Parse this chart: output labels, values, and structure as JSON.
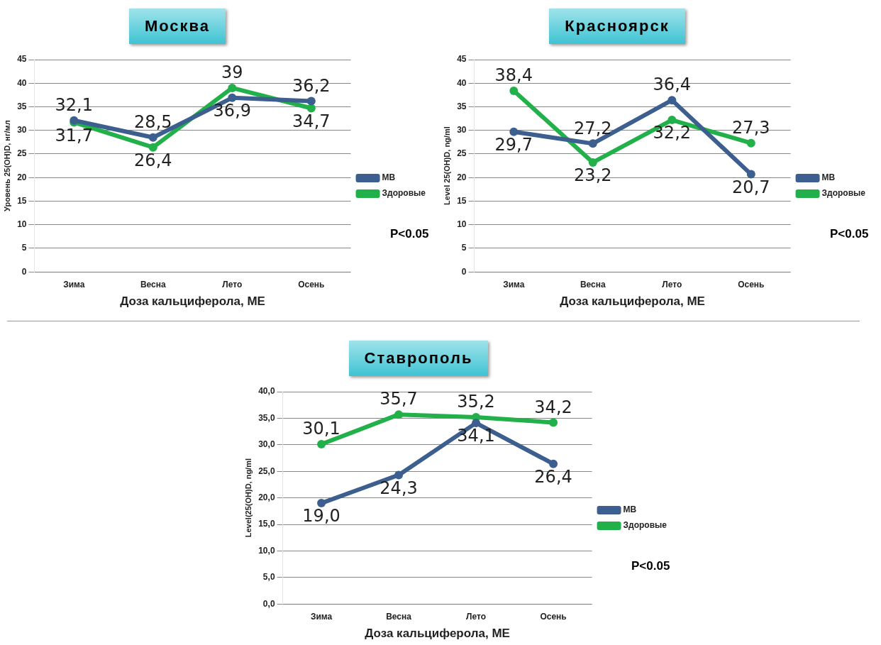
{
  "chart_data": [
    {
      "type": "line",
      "title": "Москва",
      "xlabel": "Доза кальциферола, МЕ",
      "ylabel": "Уровень 25(OH)D, нг/мл",
      "categories": [
        "Зима",
        "Весна",
        "Лето",
        "Осень"
      ],
      "series": [
        {
          "name": "МВ",
          "color": "#3d5f8f",
          "values": [
            32.1,
            28.5,
            36.9,
            36.2
          ],
          "value_labels": [
            "32,1",
            "28,5",
            "36,9",
            "36,2"
          ]
        },
        {
          "name": "Здоровые",
          "color": "#22b04a",
          "values": [
            31.7,
            26.4,
            39,
            34.7
          ],
          "value_labels": [
            "31,7",
            "26,4",
            "39",
            "34,7"
          ]
        }
      ],
      "ylim": [
        0,
        45
      ],
      "yticks": [
        0,
        5,
        10,
        15,
        20,
        25,
        30,
        35,
        40,
        45
      ],
      "grid": "y",
      "legend": "right",
      "marker": "circle",
      "line_style": "solid",
      "annotations": [
        "P<0.05"
      ]
    },
    {
      "type": "line",
      "title": "Красноярск",
      "xlabel": "Доза кальциферола, МЕ",
      "ylabel": "Level 25(OH)D, ng/ml",
      "categories": [
        "Зима",
        "Весна",
        "Лето",
        "Осень"
      ],
      "series": [
        {
          "name": "МВ",
          "color": "#3d5f8f",
          "values": [
            29.7,
            27.2,
            36.4,
            20.7
          ],
          "value_labels": [
            "29,7",
            "27,2",
            "36,4",
            "20,7"
          ]
        },
        {
          "name": "Здоровые",
          "color": "#22b04a",
          "values": [
            38.4,
            23.2,
            32.2,
            27.3
          ],
          "value_labels": [
            "38,4",
            "23,2",
            "32,2",
            "27,3"
          ]
        }
      ],
      "ylim": [
        0,
        45
      ],
      "yticks": [
        0,
        5,
        10,
        15,
        20,
        25,
        30,
        35,
        40,
        45
      ],
      "grid": "y",
      "legend": "right",
      "marker": "circle",
      "line_style": "solid",
      "annotations": [
        "P<0.05"
      ]
    },
    {
      "type": "line",
      "title": "Ставрополь",
      "xlabel": "Доза кальциферола, МЕ",
      "ylabel": "Level(25(OH)D, ng/ml",
      "categories": [
        "Зима",
        "Весна",
        "Лето",
        "Осень"
      ],
      "series": [
        {
          "name": "МВ",
          "color": "#3d5f8f",
          "values": [
            19.0,
            24.3,
            34.1,
            26.4
          ],
          "value_labels": [
            "19,0",
            "24,3",
            "34,1",
            "26,4"
          ]
        },
        {
          "name": "Здоровые",
          "color": "#22b04a",
          "values": [
            30.1,
            35.7,
            35.2,
            34.2
          ],
          "value_labels": [
            "30,1",
            "35,7",
            "35,2",
            "34,2"
          ]
        }
      ],
      "ylim": [
        0,
        40
      ],
      "yticks": [
        {
          "value": 0,
          "label": "0,0"
        },
        {
          "value": 5,
          "label": "5,0"
        },
        {
          "value": 10,
          "label": "10,0"
        },
        {
          "value": 15,
          "label": "15,0"
        },
        {
          "value": 20,
          "label": "20,0"
        },
        {
          "value": 25,
          "label": "25,0"
        },
        {
          "value": 30,
          "label": "30,0"
        },
        {
          "value": 35,
          "label": "35,0"
        },
        {
          "value": 40,
          "label": "40,0"
        }
      ],
      "grid": "y",
      "legend": "right",
      "marker": "circle",
      "line_style": "solid",
      "annotations": [
        "P<0.05"
      ]
    }
  ]
}
